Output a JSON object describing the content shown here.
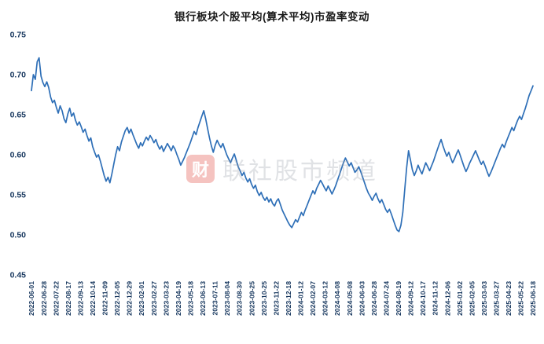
{
  "page": {
    "title": "银行板块个股平均(算术平均)市盈率变动"
  },
  "watermark": {
    "icon_char": "财",
    "label": "联社股市频道"
  },
  "chart_data": {
    "type": "line",
    "title": "银行板块个股平均(算术平均)市盈率变动",
    "line_color": "#2e6fb7",
    "tick_color": "#17375e",
    "grid": false,
    "legend": "none",
    "ylim": [
      0.45,
      0.75
    ],
    "yticks": [
      0.45,
      0.5,
      0.55,
      0.6,
      0.65,
      0.7,
      0.75
    ],
    "categories": [
      "2022-06-01",
      "2022-06-28",
      "2022-07-22",
      "2022-08-17",
      "2022-09-13",
      "2022-10-14",
      "2022-11-09",
      "2022-12-05",
      "2022-12-29",
      "2023-02-01",
      "2023-02-27",
      "2023-03-23",
      "2023-04-19",
      "2023-05-18",
      "2023-06-13",
      "2023-07-11",
      "2023-08-04",
      "2023-08-30",
      "2023-09-25",
      "2023-10-25",
      "2023-11-22",
      "2023-12-18",
      "2024-01-12",
      "2024-02-07",
      "2024-03-12",
      "2024-04-08",
      "2024-05-08",
      "2024-06-03",
      "2024-06-28",
      "2024-07-24",
      "2024-08-19",
      "2024-09-12",
      "2024-10-17",
      "2024-11-12",
      "2024-12-06",
      "2025-01-02",
      "2025-02-05",
      "2025-03-03",
      "2025-03-27",
      "2025-04-23",
      "2025-05-22",
      "2025-06-18"
    ],
    "values": [
      0.68,
      0.7,
      0.694,
      0.716,
      0.721,
      0.698,
      0.69,
      0.685,
      0.691,
      0.684,
      0.672,
      0.665,
      0.668,
      0.659,
      0.652,
      0.661,
      0.655,
      0.645,
      0.64,
      0.651,
      0.658,
      0.648,
      0.652,
      0.643,
      0.637,
      0.641,
      0.635,
      0.628,
      0.632,
      0.624,
      0.617,
      0.621,
      0.61,
      0.603,
      0.597,
      0.6,
      0.592,
      0.583,
      0.574,
      0.567,
      0.572,
      0.565,
      0.576,
      0.588,
      0.6,
      0.61,
      0.605,
      0.616,
      0.623,
      0.63,
      0.634,
      0.627,
      0.632,
      0.625,
      0.619,
      0.613,
      0.608,
      0.615,
      0.611,
      0.617,
      0.622,
      0.618,
      0.624,
      0.62,
      0.615,
      0.619,
      0.612,
      0.607,
      0.611,
      0.604,
      0.609,
      0.614,
      0.61,
      0.605,
      0.611,
      0.607,
      0.6,
      0.594,
      0.587,
      0.592,
      0.597,
      0.603,
      0.609,
      0.615,
      0.622,
      0.629,
      0.625,
      0.634,
      0.641,
      0.648,
      0.655,
      0.645,
      0.633,
      0.621,
      0.611,
      0.603,
      0.612,
      0.618,
      0.613,
      0.609,
      0.614,
      0.607,
      0.6,
      0.595,
      0.59,
      0.596,
      0.601,
      0.593,
      0.585,
      0.58,
      0.574,
      0.578,
      0.571,
      0.566,
      0.57,
      0.563,
      0.558,
      0.562,
      0.554,
      0.549,
      0.553,
      0.547,
      0.543,
      0.547,
      0.541,
      0.545,
      0.539,
      0.536,
      0.542,
      0.545,
      0.538,
      0.531,
      0.526,
      0.521,
      0.516,
      0.512,
      0.509,
      0.514,
      0.519,
      0.516,
      0.522,
      0.528,
      0.524,
      0.531,
      0.537,
      0.543,
      0.549,
      0.555,
      0.551,
      0.558,
      0.563,
      0.568,
      0.564,
      0.559,
      0.555,
      0.561,
      0.556,
      0.551,
      0.556,
      0.562,
      0.569,
      0.576,
      0.583,
      0.59,
      0.596,
      0.591,
      0.586,
      0.59,
      0.584,
      0.578,
      0.581,
      0.585,
      0.579,
      0.572,
      0.565,
      0.558,
      0.552,
      0.548,
      0.543,
      0.548,
      0.552,
      0.545,
      0.54,
      0.544,
      0.538,
      0.532,
      0.528,
      0.532,
      0.526,
      0.519,
      0.512,
      0.506,
      0.504,
      0.512,
      0.528,
      0.556,
      0.584,
      0.605,
      0.593,
      0.581,
      0.574,
      0.58,
      0.587,
      0.581,
      0.576,
      0.583,
      0.59,
      0.585,
      0.58,
      0.586,
      0.592,
      0.599,
      0.606,
      0.613,
      0.619,
      0.611,
      0.604,
      0.598,
      0.603,
      0.596,
      0.59,
      0.595,
      0.601,
      0.606,
      0.599,
      0.592,
      0.585,
      0.579,
      0.584,
      0.59,
      0.595,
      0.6,
      0.605,
      0.599,
      0.593,
      0.588,
      0.592,
      0.586,
      0.579,
      0.573,
      0.578,
      0.584,
      0.59,
      0.596,
      0.602,
      0.608,
      0.613,
      0.609,
      0.616,
      0.622,
      0.628,
      0.634,
      0.63,
      0.637,
      0.643,
      0.648,
      0.644,
      0.651,
      0.658,
      0.666,
      0.674,
      0.68,
      0.686
    ]
  }
}
